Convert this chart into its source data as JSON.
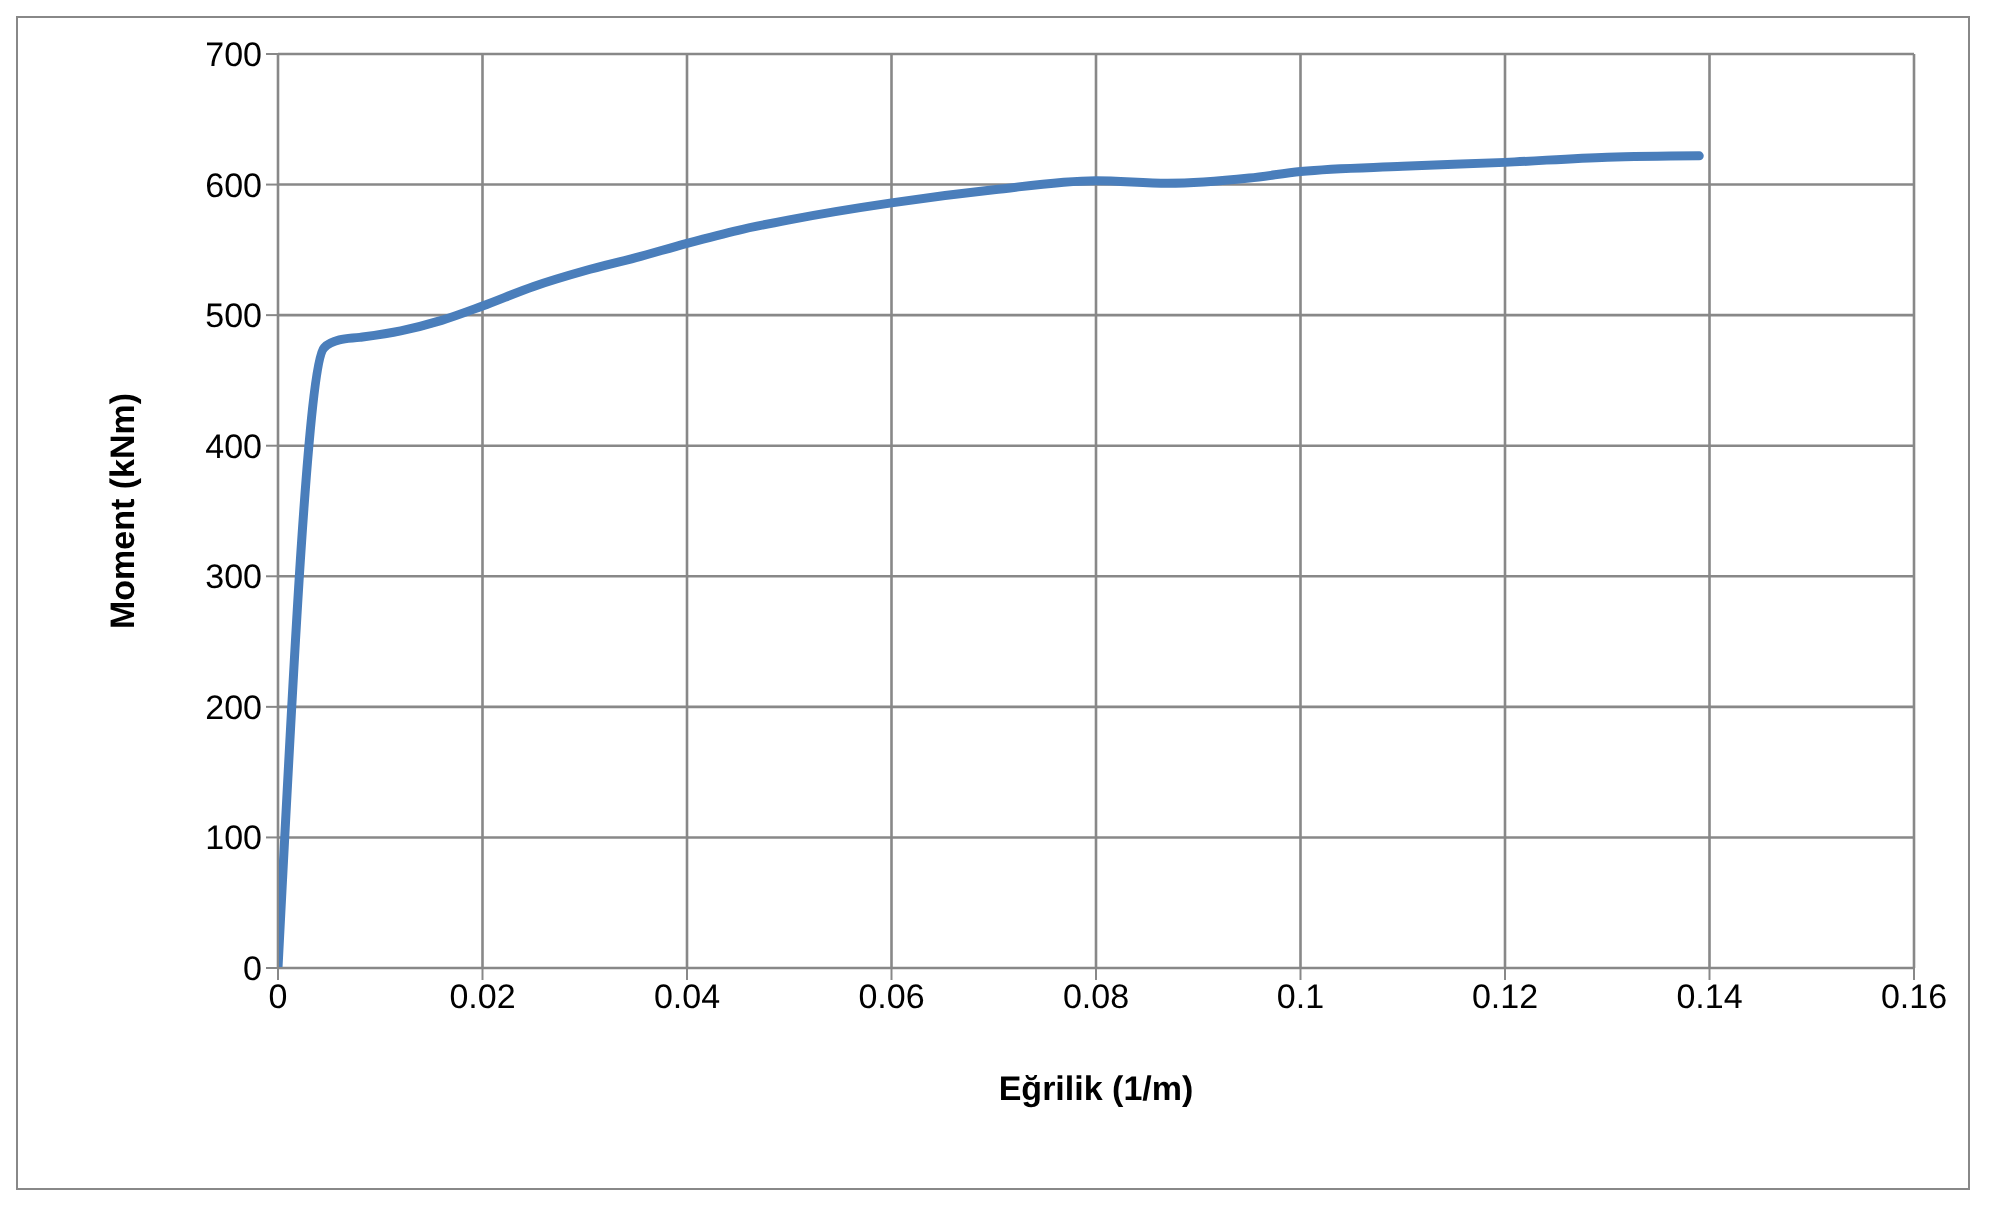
{
  "chart_data": {
    "type": "line",
    "xlabel": "Eğrilik (1/m)",
    "ylabel": "Moment (kNm)",
    "series": [
      {
        "color": "#4a7ebb",
        "x": [
          0,
          0.0045,
          0.006,
          0.008,
          0.012,
          0.016,
          0.02,
          0.025,
          0.03,
          0.035,
          0.04,
          0.045,
          0.05,
          0.06,
          0.07,
          0.08,
          0.087,
          0.095,
          0.1,
          0.11,
          0.12,
          0.13,
          0.139
        ],
        "values": [
          0,
          475,
          481,
          483,
          488,
          496,
          507,
          522,
          534,
          544,
          555,
          565,
          573,
          586,
          596,
          603,
          601,
          605,
          610,
          614,
          617,
          621,
          622
        ]
      }
    ],
    "xlim": [
      0,
      0.16
    ],
    "xticks": [
      0,
      0.02,
      0.04,
      0.06,
      0.08,
      0.1,
      0.12,
      0.14,
      0.16
    ],
    "ylim": [
      0,
      700
    ],
    "yticks": [
      0,
      100,
      200,
      300,
      400,
      500,
      600,
      700
    ],
    "grid": true,
    "legend": false,
    "marker": "none",
    "line_style": "solid"
  }
}
